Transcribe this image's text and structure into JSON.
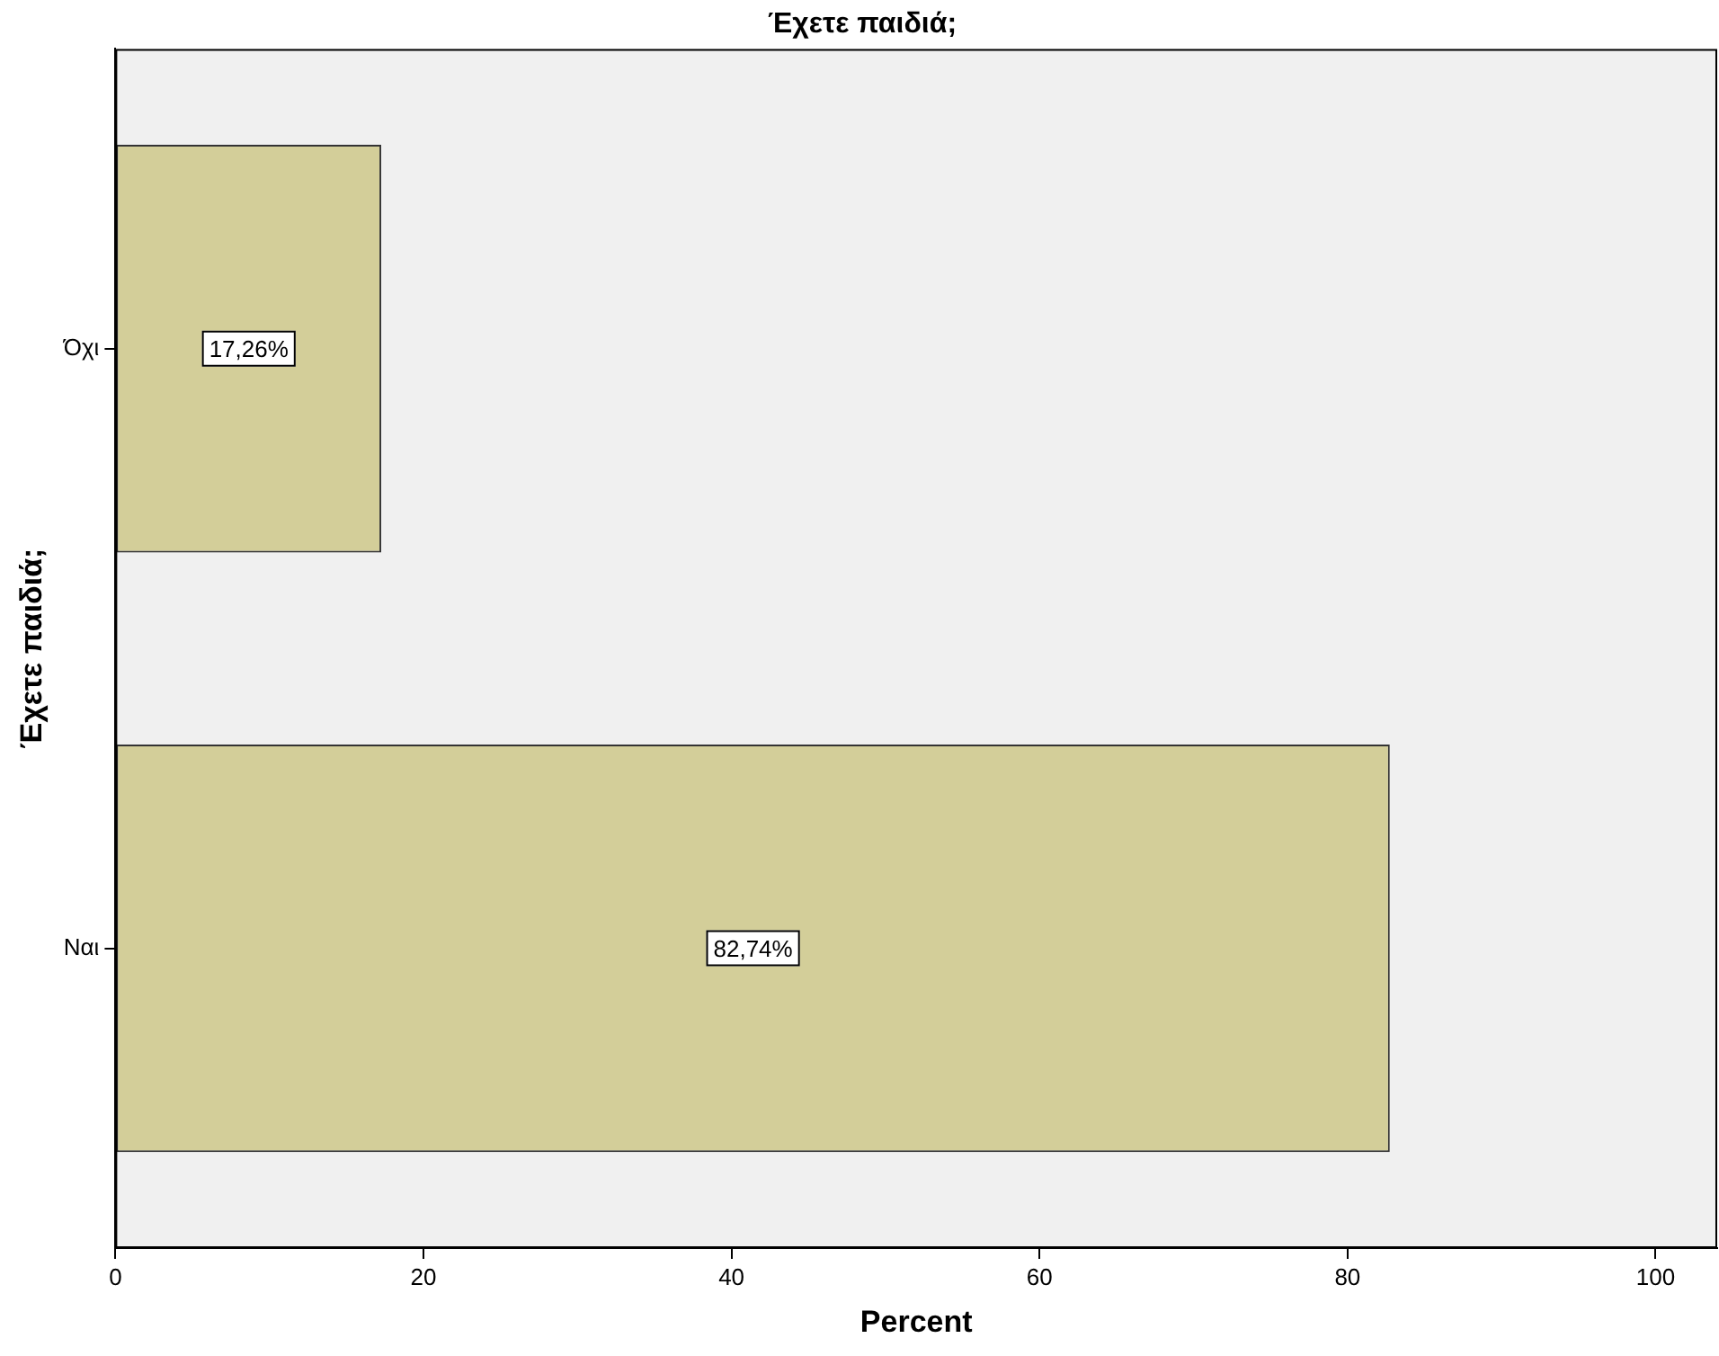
{
  "chart_data": {
    "type": "bar",
    "orientation": "horizontal",
    "title": "Έχετε παιδιά;",
    "ylabel": "Έχετε παιδιά;",
    "xlabel": "Percent",
    "categories": [
      "Όχι",
      "Ναι"
    ],
    "values": [
      17.26,
      82.74
    ],
    "value_labels": [
      "17,26%",
      "82,74%"
    ],
    "color": "#d3ce99",
    "xlim": [
      0,
      104
    ],
    "xticks": [
      0,
      20,
      40,
      60,
      80,
      100
    ],
    "legend": false
  }
}
